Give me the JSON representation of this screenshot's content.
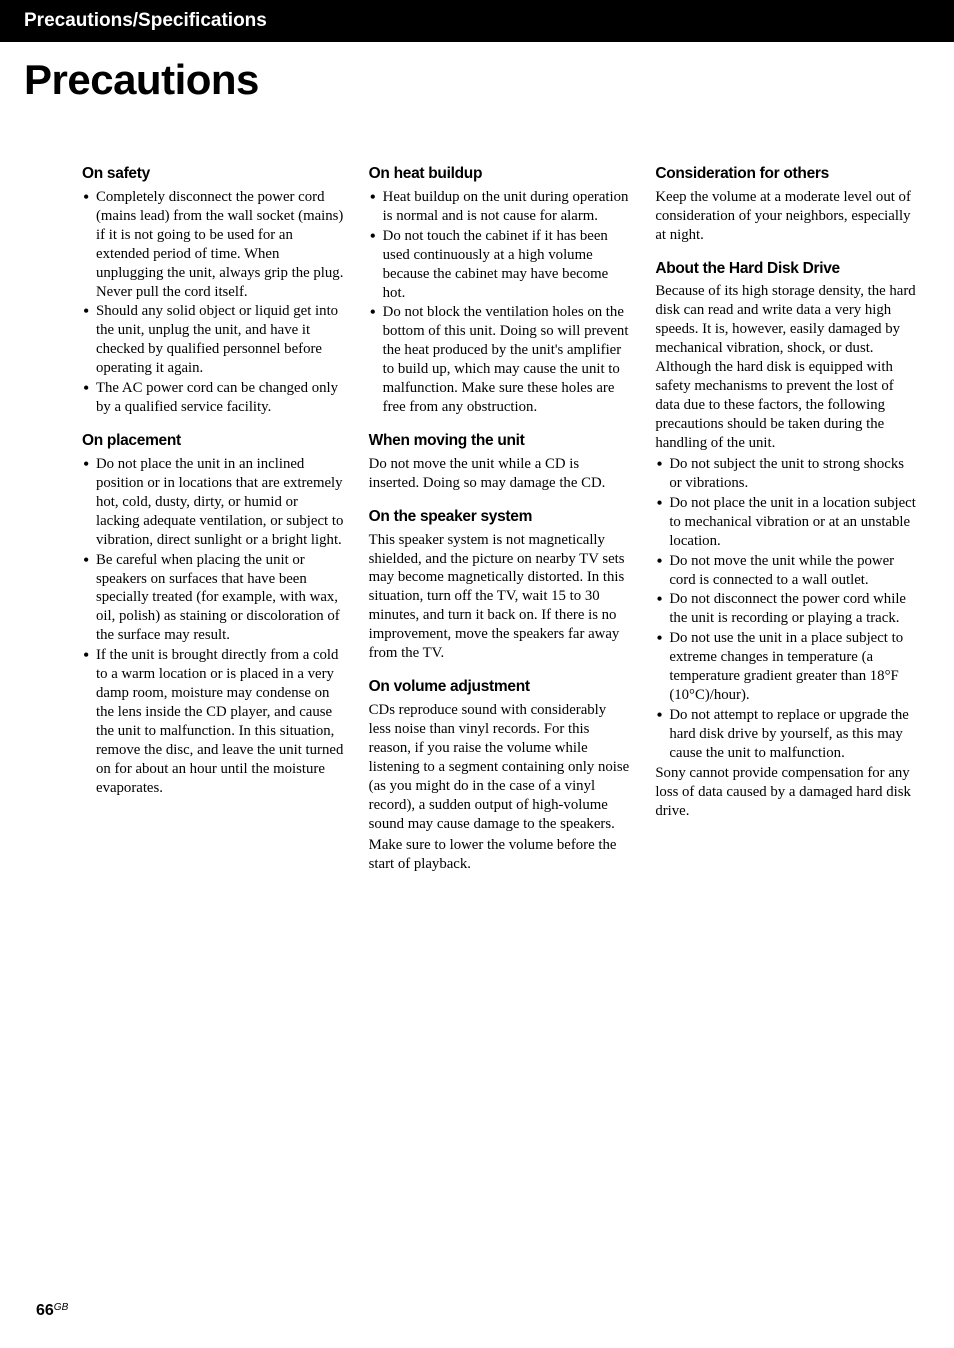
{
  "header": {
    "title": "Precautions/Specifications"
  },
  "page_title": "Precautions",
  "page_number": "66",
  "page_suffix": "GB",
  "typography": {
    "body_font": "serif",
    "heading_font": "sans-serif",
    "body_size_pt": 11,
    "heading_size_pt": 12,
    "title_size_pt": 32
  },
  "colors": {
    "header_bg": "#000000",
    "header_text": "#ffffff",
    "body_text": "#000000",
    "page_bg": "#ffffff"
  },
  "sections": {
    "on_safety": {
      "heading": "On safety",
      "items": [
        "Completely disconnect the power cord (mains lead) from the wall socket (mains) if it is not going to be used for an extended period of time. When unplugging the unit, always grip the plug. Never pull the cord itself.",
        "Should any solid object or liquid get into the unit, unplug the unit, and have it checked by qualified personnel before operating it again.",
        "The AC power cord can be changed only by a qualified service facility."
      ]
    },
    "on_placement": {
      "heading": "On placement",
      "items": [
        "Do not place the unit in an inclined position or in locations that are extremely hot, cold, dusty, dirty, or humid or lacking adequate ventilation, or subject to vibration, direct sunlight or a bright light.",
        "Be careful when placing the unit or speakers on surfaces that have been specially treated (for example, with wax, oil, polish) as staining or discoloration of the surface may result.",
        "If the unit is brought directly from a cold to a warm location or is placed in a very damp room, moisture may condense on the lens inside the CD player, and cause the unit to malfunction. In this situation, remove the disc, and leave the unit turned on for about an hour until the moisture evaporates."
      ]
    },
    "on_heat": {
      "heading": "On heat buildup",
      "items": [
        "Heat buildup on the unit during operation is normal and is not cause for alarm.",
        "Do not touch the cabinet if it has been used continuously at a high volume because the cabinet may have become hot.",
        "Do not block the ventilation holes on the bottom of this unit. Doing so will prevent the heat produced by the unit's amplifier to build up, which may cause the unit to malfunction. Make sure these holes are free from any obstruction."
      ]
    },
    "when_moving": {
      "heading": "When moving the unit",
      "body": "Do not move the unit while a CD is inserted. Doing so may damage the CD."
    },
    "on_speaker": {
      "heading": "On the speaker system",
      "body": "This speaker system is not magnetically shielded, and the picture on nearby TV sets may become magnetically distorted. In this situation, turn off the TV, wait 15 to 30 minutes, and turn it back on. If there is no improvement, move the speakers far away from the TV."
    },
    "on_volume": {
      "heading": "On volume adjustment",
      "body1": "CDs reproduce sound with considerably less noise than vinyl records. For this reason, if you raise the volume while listening to a segment containing only noise (as you might do in the case of a vinyl record), a sudden output of high-volume sound may cause damage to the speakers.",
      "body2": "Make sure to lower the volume before the start of playback."
    },
    "consideration": {
      "heading": "Consideration for others",
      "body": "Keep the volume at a moderate level out of consideration of your neighbors, especially at night."
    },
    "about_hdd": {
      "heading": "About the Hard Disk Drive",
      "intro": "Because of its high storage density, the hard disk can read and write data a very high speeds. It is, however, easily damaged by mechanical vibration, shock, or dust. Although the hard disk is equipped with safety mechanisms to prevent the lost of data due to these factors, the following precautions should be taken during the handling of the unit.",
      "items": [
        "Do not subject the unit to strong shocks or vibrations.",
        "Do not place the unit in a location subject to mechanical vibration or at an unstable location.",
        "Do not move the unit while the power cord is connected to a wall outlet.",
        "Do not disconnect the power cord while the unit is recording or playing a track.",
        "Do not use the unit in a place subject to extreme changes in temperature (a temperature gradient greater than 18°F (10°C)/hour).",
        "Do not attempt to replace or upgrade the hard disk drive by yourself, as this may cause the unit to malfunction."
      ],
      "outro": "Sony cannot provide compensation for any loss of data caused by a damaged hard disk drive."
    }
  }
}
